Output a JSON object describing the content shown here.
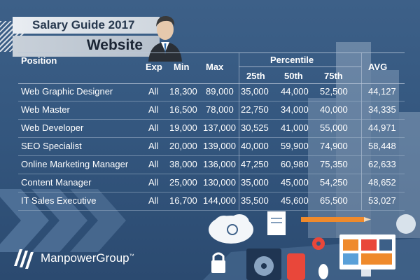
{
  "header": {
    "title": "Salary Guide 2017",
    "subtitle": "Website"
  },
  "table": {
    "columns": {
      "position": "Position",
      "exp": "Exp",
      "min": "Min",
      "max": "Max",
      "percentile": "Percentile",
      "p25": "25th",
      "p50": "50th",
      "p75": "75th",
      "avg": "AVG"
    },
    "rows": [
      {
        "position": "Web Graphic Designer",
        "exp": "All",
        "min": "18,300",
        "max": "89,000",
        "p25": "35,000",
        "p50": "44,000",
        "p75": "52,500",
        "avg": "44,127"
      },
      {
        "position": "Web Master",
        "exp": "All",
        "min": "16,500",
        "max": "78,000",
        "p25": "22,750",
        "p50": "34,000",
        "p75": "40,000",
        "avg": "34,335"
      },
      {
        "position": "Web Developer",
        "exp": "All",
        "min": "19,000",
        "max": "137,000",
        "p25": "30,525",
        "p50": "41,000",
        "p75": "55,000",
        "avg": "44,971"
      },
      {
        "position": "SEO Specialist",
        "exp": "All",
        "min": "20,000",
        "max": "139,000",
        "p25": "40,000",
        "p50": "59,900",
        "p75": "74,900",
        "avg": "58,448"
      },
      {
        "position": "Online Marketing Manager",
        "exp": "All",
        "min": "38,000",
        "max": "136,000",
        "p25": "47,250",
        "p50": "60,980",
        "p75": "75,350",
        "avg": "62,633"
      },
      {
        "position": "Content Manager",
        "exp": "All",
        "min": "25,000",
        "max": "130,000",
        "p25": "35,000",
        "p50": "45,000",
        "p75": "54,250",
        "avg": "48,652"
      },
      {
        "position": "IT Sales Executive",
        "exp": "All",
        "min": "16,700",
        "max": "144,000",
        "p25": "35,500",
        "p50": "45,600",
        "p75": "65,500",
        "avg": "53,027"
      }
    ]
  },
  "footer": {
    "logo_text": "ManpowerGroup",
    "logo_mark": "™"
  },
  "colors": {
    "background": "#34577f",
    "text": "#ffffff",
    "banner": "#e9edf2",
    "accent": "#ef8a2c"
  },
  "icons": [
    "businessman-avatar-icon",
    "manpower-logo-icon",
    "cloud-icon",
    "document-icon",
    "pencil-icon",
    "gear-icon",
    "lock-icon",
    "harddisk-icon",
    "mouse-icon",
    "monitor-icon"
  ]
}
